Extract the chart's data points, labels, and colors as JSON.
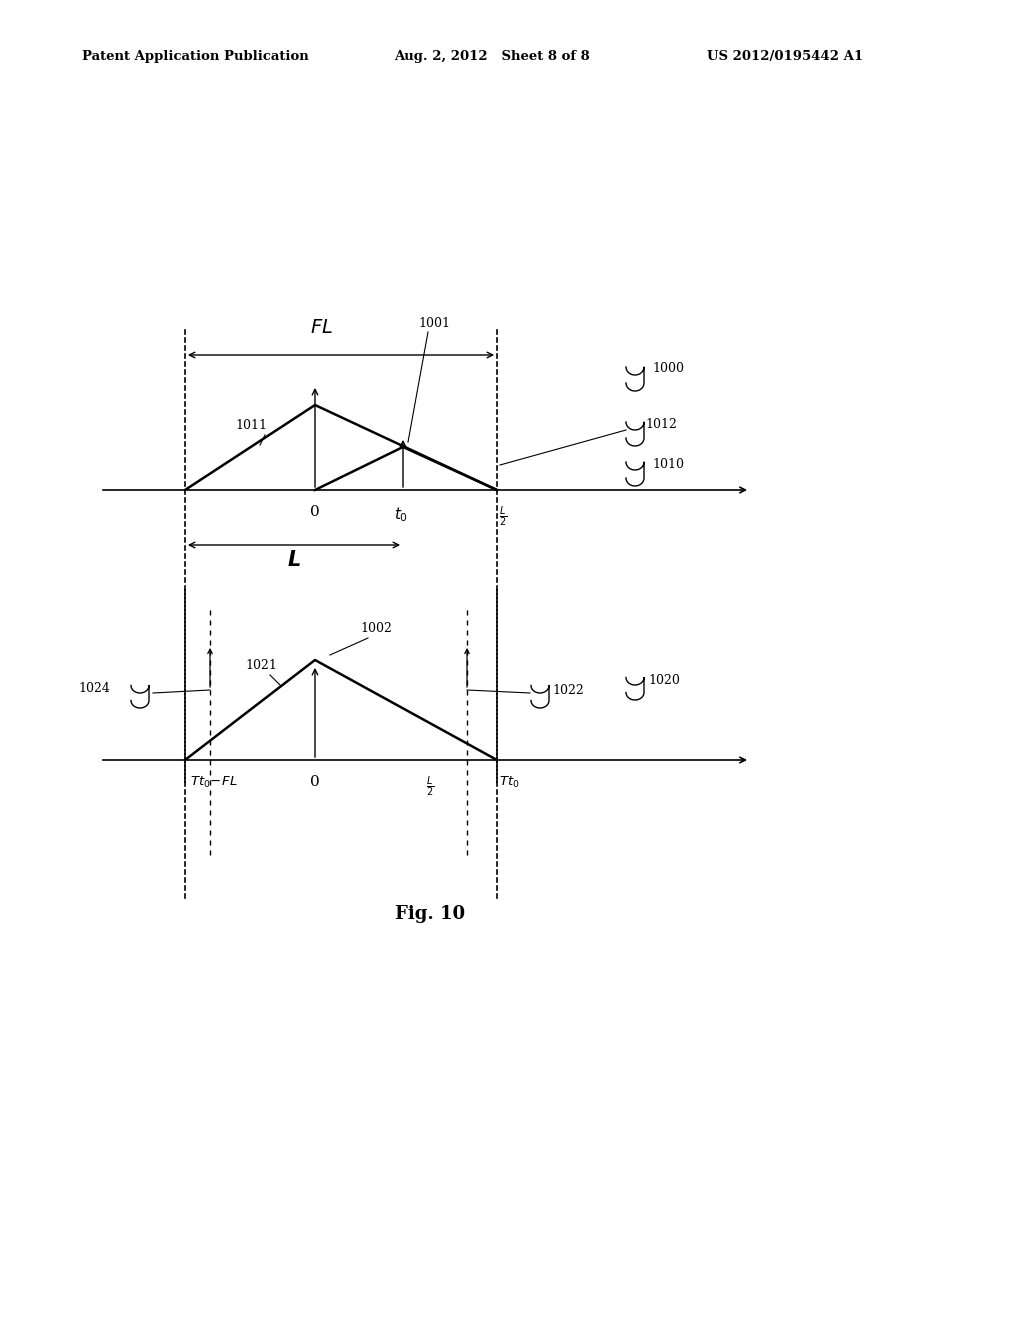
{
  "background_color": "#ffffff",
  "header_left": "Patent Application Publication",
  "header_center": "Aug. 2, 2012   Sheet 8 of 8",
  "header_right": "US 2012/0195442 A1",
  "fig_label": "Fig. 10"
}
